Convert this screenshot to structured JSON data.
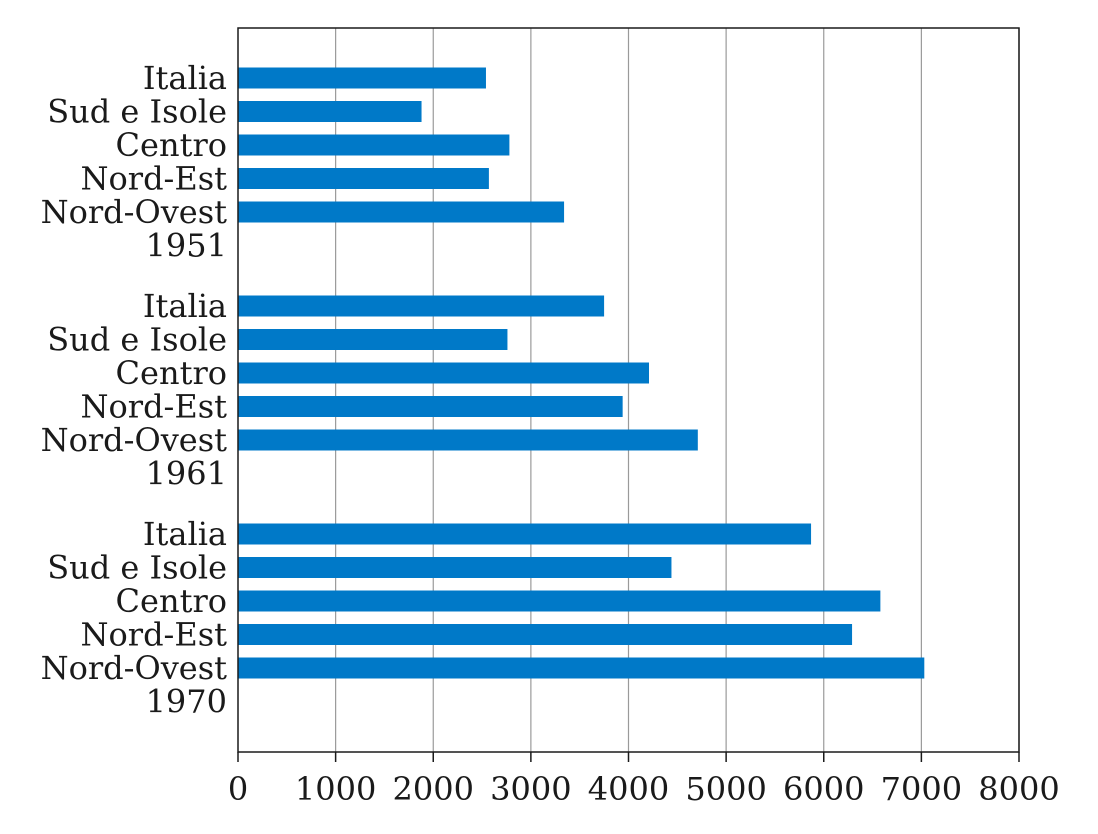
{
  "chart_data": {
    "type": "bar",
    "orientation": "horizontal",
    "title": "",
    "xlabel": "",
    "ylabel": "",
    "xlim": [
      0,
      8000
    ],
    "xticks": [
      0,
      1000,
      2000,
      3000,
      4000,
      5000,
      6000,
      7000,
      8000
    ],
    "grid": "vertical",
    "bar_color": "#0079C8",
    "groups": [
      {
        "label": "1951",
        "categories": [
          "Italia",
          "Sud e Isole",
          "Centro",
          "Nord-Est",
          "Nord-Ovest"
        ],
        "values": [
          2540,
          1880,
          2780,
          2570,
          3340
        ]
      },
      {
        "label": "1961",
        "categories": [
          "Italia",
          "Sud e Isole",
          "Centro",
          "Nord-Est",
          "Nord-Ovest"
        ],
        "values": [
          3750,
          2760,
          4210,
          3940,
          4710
        ]
      },
      {
        "label": "1970",
        "categories": [
          "Italia",
          "Sud e Isole",
          "Centro",
          "Nord-Est",
          "Nord-Ovest"
        ],
        "values": [
          5870,
          4440,
          6580,
          6290,
          7030
        ]
      }
    ]
  }
}
